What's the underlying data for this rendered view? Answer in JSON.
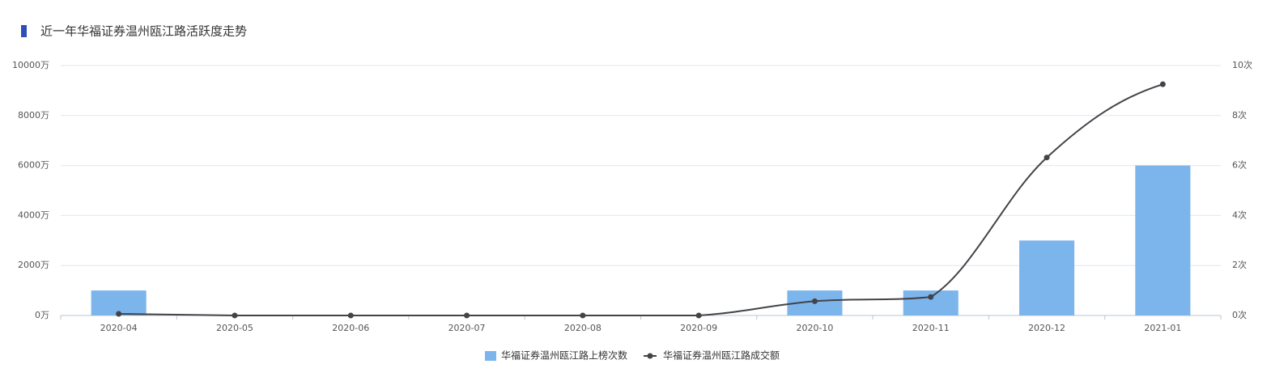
{
  "chart_data": {
    "type": "combo",
    "title": "近一年华福证券温州瓯江路活跃度走势",
    "categories": [
      "2020-04",
      "2020-05",
      "2020-06",
      "2020-07",
      "2020-08",
      "2020-09",
      "2020-10",
      "2020-11",
      "2020-12",
      "2021-01"
    ],
    "series": [
      {
        "name": "华福证券温州瓯江路上榜次数",
        "type": "bar",
        "axis": "y2",
        "color": "#7cb5ec",
        "values": [
          1,
          0,
          0,
          0,
          0,
          0,
          1,
          1,
          3,
          6
        ]
      },
      {
        "name": "华福证券温州瓯江路成交额",
        "type": "line",
        "color": "#434348",
        "values": [
          65,
          0,
          0,
          0,
          0,
          0,
          570,
          740,
          6320,
          9250
        ]
      }
    ],
    "ylim": [
      0,
      10000
    ],
    "yticks": [
      {
        "value": 0,
        "label": "0万"
      },
      {
        "value": 2000,
        "label": "2000万"
      },
      {
        "value": 4000,
        "label": "4000万"
      },
      {
        "value": 6000,
        "label": "6000万"
      },
      {
        "value": 8000,
        "label": "8000万"
      },
      {
        "value": 10000,
        "label": "10000万"
      }
    ],
    "y2lim": [
      0,
      10
    ],
    "y2ticks": [
      {
        "value": 0,
        "label": "0次"
      },
      {
        "value": 2,
        "label": "2次"
      },
      {
        "value": 4,
        "label": "4次"
      },
      {
        "value": 6,
        "label": "6次"
      },
      {
        "value": 8,
        "label": "8次"
      },
      {
        "value": 10,
        "label": "10次"
      }
    ],
    "grid": true,
    "legend": "bottom"
  }
}
